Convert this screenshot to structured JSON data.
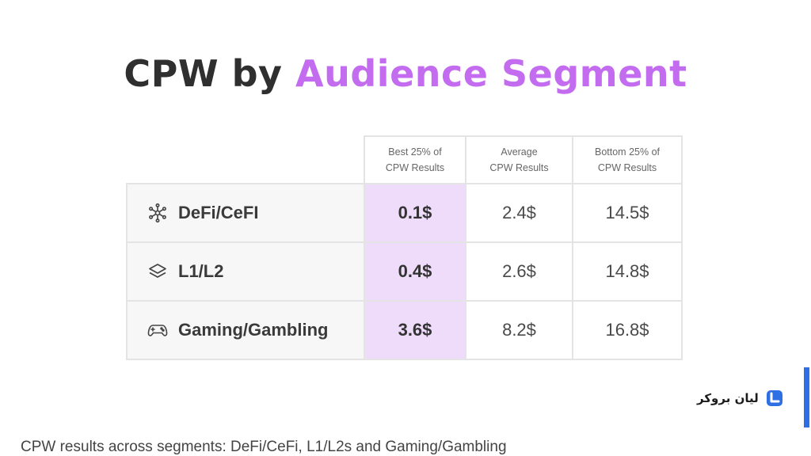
{
  "title": {
    "main": "CPW by",
    "accent": "Audience Segment"
  },
  "table": {
    "headers": [
      {
        "line1": "Best 25% of",
        "line2": "CPW Results"
      },
      {
        "line1": "Average",
        "line2": "CPW Results"
      },
      {
        "line1": "Bottom 25% of",
        "line2": "CPW Results"
      }
    ],
    "rows": [
      {
        "icon": "network-nodes-icon",
        "label": "DeFi/CeFI",
        "best": "0.1$",
        "average": "2.4$",
        "bottom": "14.5$"
      },
      {
        "icon": "layers-icon",
        "label": "L1/L2",
        "best": "0.4$",
        "average": "2.6$",
        "bottom": "14.8$"
      },
      {
        "icon": "gamepad-icon",
        "label": "Gaming/Gambling",
        "best": "3.6$",
        "average": "8.2$",
        "bottom": "16.8$"
      }
    ]
  },
  "brand": {
    "name": "لیان بروکر",
    "logo_icon": "lian-broker-logo-icon",
    "color": "#2f6fe4"
  },
  "caption": "CPW results across segments: DeFi/CeFi, L1/L2s and Gaming/Gambling",
  "colors": {
    "accent": "#c36cf0",
    "best_column_bg": "#efdcfb"
  }
}
